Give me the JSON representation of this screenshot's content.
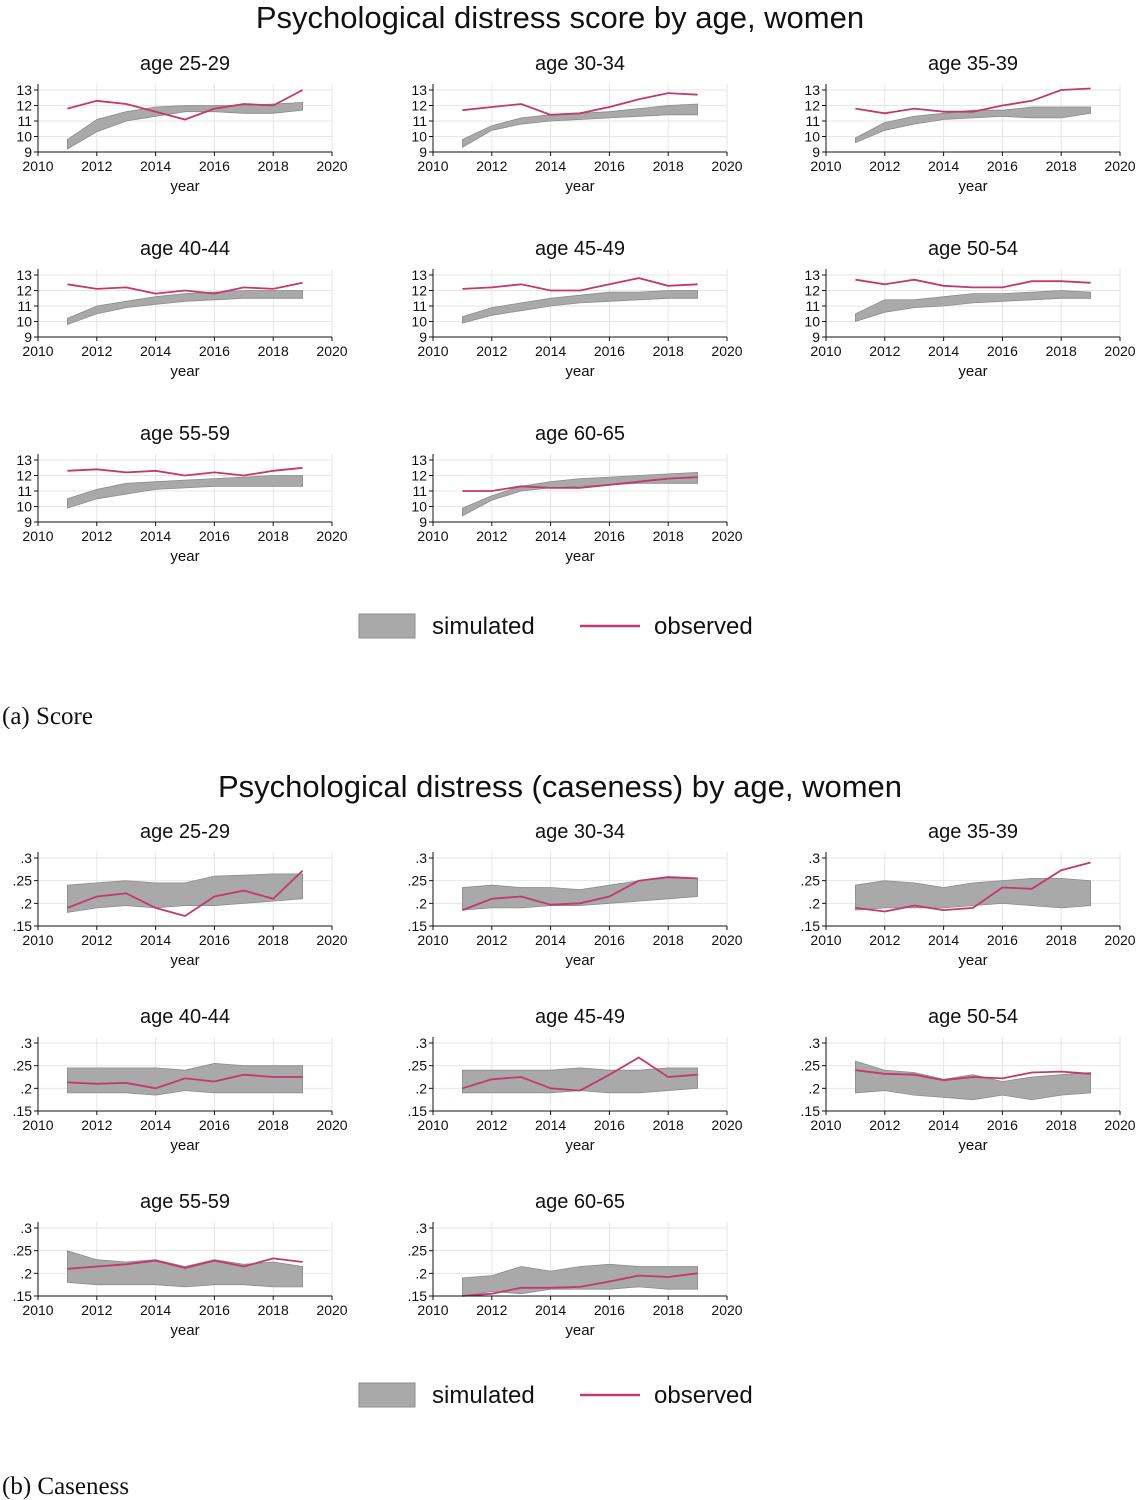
{
  "colors": {
    "simulated_fill": "#a9a9a9",
    "simulated_stroke": "#8c8c8c",
    "observed": "#c2386f",
    "grid": "#e6e6e6",
    "axis": "#111111"
  },
  "legend": {
    "simulated": "simulated",
    "observed": "observed"
  },
  "chart_data": [
    {
      "type": "area",
      "title": "Psychological distress score by age, women",
      "caption": "(a)  Score",
      "xlabel": "year",
      "ylabel": "",
      "xlim": [
        2010,
        2020
      ],
      "ylim": [
        9,
        13
      ],
      "x_ticks": [
        2010,
        2012,
        2014,
        2016,
        2018,
        2020
      ],
      "y_ticks": [
        9,
        10,
        11,
        12,
        13
      ],
      "y_tick_labels": [
        "9",
        "10",
        "11",
        "12",
        "13"
      ],
      "grid": true,
      "legend_position": "bottom",
      "x": [
        2011,
        2012,
        2013,
        2014,
        2015,
        2016,
        2017,
        2018,
        2019
      ],
      "panels": [
        {
          "title": "age 25-29",
          "sim_low": [
            9.2,
            10.3,
            11.0,
            11.3,
            11.6,
            11.6,
            11.5,
            11.5,
            11.7
          ],
          "sim_high": [
            9.8,
            11.1,
            11.6,
            11.9,
            12.0,
            12.0,
            12.0,
            12.1,
            12.2
          ],
          "observed": [
            11.8,
            12.3,
            12.1,
            11.6,
            11.1,
            11.8,
            12.1,
            12.0,
            13.0
          ]
        },
        {
          "title": "age 30-34",
          "sim_low": [
            9.3,
            10.4,
            10.8,
            11.0,
            11.1,
            11.2,
            11.3,
            11.4,
            11.4
          ],
          "sim_high": [
            9.8,
            10.7,
            11.2,
            11.4,
            11.5,
            11.6,
            11.8,
            12.0,
            12.1
          ],
          "observed": [
            11.7,
            11.9,
            12.1,
            11.4,
            11.5,
            11.9,
            12.4,
            12.8,
            12.7
          ]
        },
        {
          "title": "age 35-39",
          "sim_low": [
            9.6,
            10.4,
            10.8,
            11.1,
            11.2,
            11.3,
            11.2,
            11.2,
            11.5
          ],
          "sim_high": [
            9.9,
            10.9,
            11.3,
            11.5,
            11.7,
            11.7,
            11.9,
            11.9,
            11.9
          ],
          "observed": [
            11.8,
            11.5,
            11.8,
            11.6,
            11.6,
            12.0,
            12.3,
            13.0,
            13.1
          ]
        },
        {
          "title": "age 40-44",
          "sim_low": [
            9.8,
            10.5,
            10.9,
            11.1,
            11.3,
            11.4,
            11.5,
            11.5,
            11.5
          ],
          "sim_high": [
            10.2,
            11.0,
            11.3,
            11.6,
            11.8,
            11.9,
            12.0,
            12.0,
            12.0
          ],
          "observed": [
            12.4,
            12.1,
            12.2,
            11.8,
            12.0,
            11.8,
            12.2,
            12.1,
            12.5
          ]
        },
        {
          "title": "age 45-49",
          "sim_low": [
            9.9,
            10.4,
            10.7,
            11.0,
            11.2,
            11.3,
            11.4,
            11.5,
            11.5
          ],
          "sim_high": [
            10.3,
            10.9,
            11.2,
            11.5,
            11.7,
            11.9,
            11.9,
            12.0,
            12.0
          ],
          "observed": [
            12.1,
            12.2,
            12.4,
            12.0,
            12.0,
            12.4,
            12.8,
            12.3,
            12.4
          ]
        },
        {
          "title": "age 50-54",
          "sim_low": [
            10.0,
            10.6,
            10.9,
            11.0,
            11.2,
            11.3,
            11.4,
            11.5,
            11.5
          ],
          "sim_high": [
            10.5,
            11.4,
            11.4,
            11.6,
            11.8,
            11.8,
            11.9,
            12.0,
            11.9
          ],
          "observed": [
            12.7,
            12.4,
            12.7,
            12.3,
            12.2,
            12.2,
            12.6,
            12.6,
            12.5
          ]
        },
        {
          "title": "age 55-59",
          "sim_low": [
            9.9,
            10.5,
            10.8,
            11.1,
            11.2,
            11.3,
            11.3,
            11.3,
            11.3
          ],
          "sim_high": [
            10.5,
            11.1,
            11.5,
            11.6,
            11.7,
            11.8,
            11.9,
            12.0,
            12.0
          ],
          "observed": [
            12.3,
            12.4,
            12.2,
            12.3,
            12.0,
            12.2,
            12.0,
            12.3,
            12.5
          ]
        },
        {
          "title": "age 60-65",
          "sim_low": [
            9.4,
            10.4,
            11.0,
            11.2,
            11.3,
            11.4,
            11.5,
            11.5,
            11.5
          ],
          "sim_high": [
            9.9,
            10.7,
            11.3,
            11.6,
            11.8,
            11.9,
            12.0,
            12.1,
            12.2
          ],
          "observed": [
            11.0,
            11.0,
            11.3,
            11.2,
            11.2,
            11.4,
            11.6,
            11.8,
            11.9
          ]
        }
      ]
    },
    {
      "type": "area",
      "title": "Psychological distress (caseness) by age, women",
      "caption": "(b)  Caseness",
      "xlabel": "year",
      "ylabel": "",
      "xlim": [
        2010,
        2020
      ],
      "ylim": [
        0.15,
        0.3
      ],
      "x_ticks": [
        2010,
        2012,
        2014,
        2016,
        2018,
        2020
      ],
      "y_ticks": [
        0.15,
        0.2,
        0.25,
        0.3
      ],
      "y_tick_labels": [
        ".15",
        ".2",
        ".25",
        ".3"
      ],
      "grid": true,
      "legend_position": "bottom",
      "x": [
        2011,
        2012,
        2013,
        2014,
        2015,
        2016,
        2017,
        2018,
        2019
      ],
      "panels": [
        {
          "title": "age 25-29",
          "sim_low": [
            0.18,
            0.19,
            0.195,
            0.19,
            0.195,
            0.195,
            0.2,
            0.205,
            0.21
          ],
          "sim_high": [
            0.24,
            0.245,
            0.25,
            0.245,
            0.245,
            0.26,
            0.262,
            0.265,
            0.265
          ],
          "observed": [
            0.19,
            0.215,
            0.222,
            0.19,
            0.172,
            0.215,
            0.228,
            0.21,
            0.272
          ]
        },
        {
          "title": "age 30-34",
          "sim_low": [
            0.185,
            0.19,
            0.19,
            0.195,
            0.195,
            0.2,
            0.205,
            0.21,
            0.215
          ],
          "sim_high": [
            0.235,
            0.24,
            0.235,
            0.235,
            0.23,
            0.24,
            0.25,
            0.255,
            0.255
          ],
          "observed": [
            0.185,
            0.21,
            0.215,
            0.197,
            0.2,
            0.215,
            0.25,
            0.258,
            0.255
          ]
        },
        {
          "title": "age 35-39",
          "sim_low": [
            0.185,
            0.19,
            0.19,
            0.19,
            0.195,
            0.2,
            0.195,
            0.19,
            0.195
          ],
          "sim_high": [
            0.24,
            0.25,
            0.245,
            0.235,
            0.245,
            0.25,
            0.255,
            0.255,
            0.25
          ],
          "observed": [
            0.19,
            0.182,
            0.195,
            0.185,
            0.19,
            0.235,
            0.232,
            0.273,
            0.29
          ]
        },
        {
          "title": "age 40-44",
          "sim_low": [
            0.19,
            0.19,
            0.19,
            0.185,
            0.195,
            0.19,
            0.19,
            0.19,
            0.19
          ],
          "sim_high": [
            0.245,
            0.245,
            0.245,
            0.245,
            0.24,
            0.255,
            0.25,
            0.25,
            0.25
          ],
          "observed": [
            0.213,
            0.21,
            0.212,
            0.2,
            0.222,
            0.215,
            0.23,
            0.225,
            0.225
          ]
        },
        {
          "title": "age 45-49",
          "sim_low": [
            0.19,
            0.19,
            0.19,
            0.19,
            0.195,
            0.19,
            0.19,
            0.195,
            0.2
          ],
          "sim_high": [
            0.24,
            0.24,
            0.24,
            0.24,
            0.245,
            0.24,
            0.24,
            0.245,
            0.245
          ],
          "observed": [
            0.2,
            0.22,
            0.225,
            0.2,
            0.195,
            0.23,
            0.268,
            0.225,
            0.23
          ]
        },
        {
          "title": "age 50-54",
          "sim_low": [
            0.19,
            0.195,
            0.185,
            0.18,
            0.175,
            0.185,
            0.175,
            0.185,
            0.19
          ],
          "sim_high": [
            0.26,
            0.24,
            0.235,
            0.22,
            0.23,
            0.215,
            0.225,
            0.23,
            0.235
          ],
          "observed": [
            0.24,
            0.232,
            0.23,
            0.218,
            0.225,
            0.222,
            0.235,
            0.237,
            0.232
          ]
        },
        {
          "title": "age 55-59",
          "sim_low": [
            0.18,
            0.175,
            0.175,
            0.175,
            0.17,
            0.175,
            0.175,
            0.17,
            0.17
          ],
          "sim_high": [
            0.25,
            0.23,
            0.225,
            0.23,
            0.215,
            0.23,
            0.22,
            0.225,
            0.215
          ],
          "observed": [
            0.21,
            0.215,
            0.22,
            0.228,
            0.212,
            0.228,
            0.215,
            0.233,
            0.225
          ]
        },
        {
          "title": "age 60-65",
          "sim_low": [
            0.15,
            0.16,
            0.155,
            0.165,
            0.165,
            0.165,
            0.17,
            0.165,
            0.165
          ],
          "sim_high": [
            0.19,
            0.195,
            0.215,
            0.205,
            0.215,
            0.22,
            0.215,
            0.215,
            0.215
          ],
          "observed": [
            0.15,
            0.155,
            0.168,
            0.168,
            0.17,
            0.182,
            0.195,
            0.192,
            0.2
          ]
        }
      ]
    }
  ]
}
